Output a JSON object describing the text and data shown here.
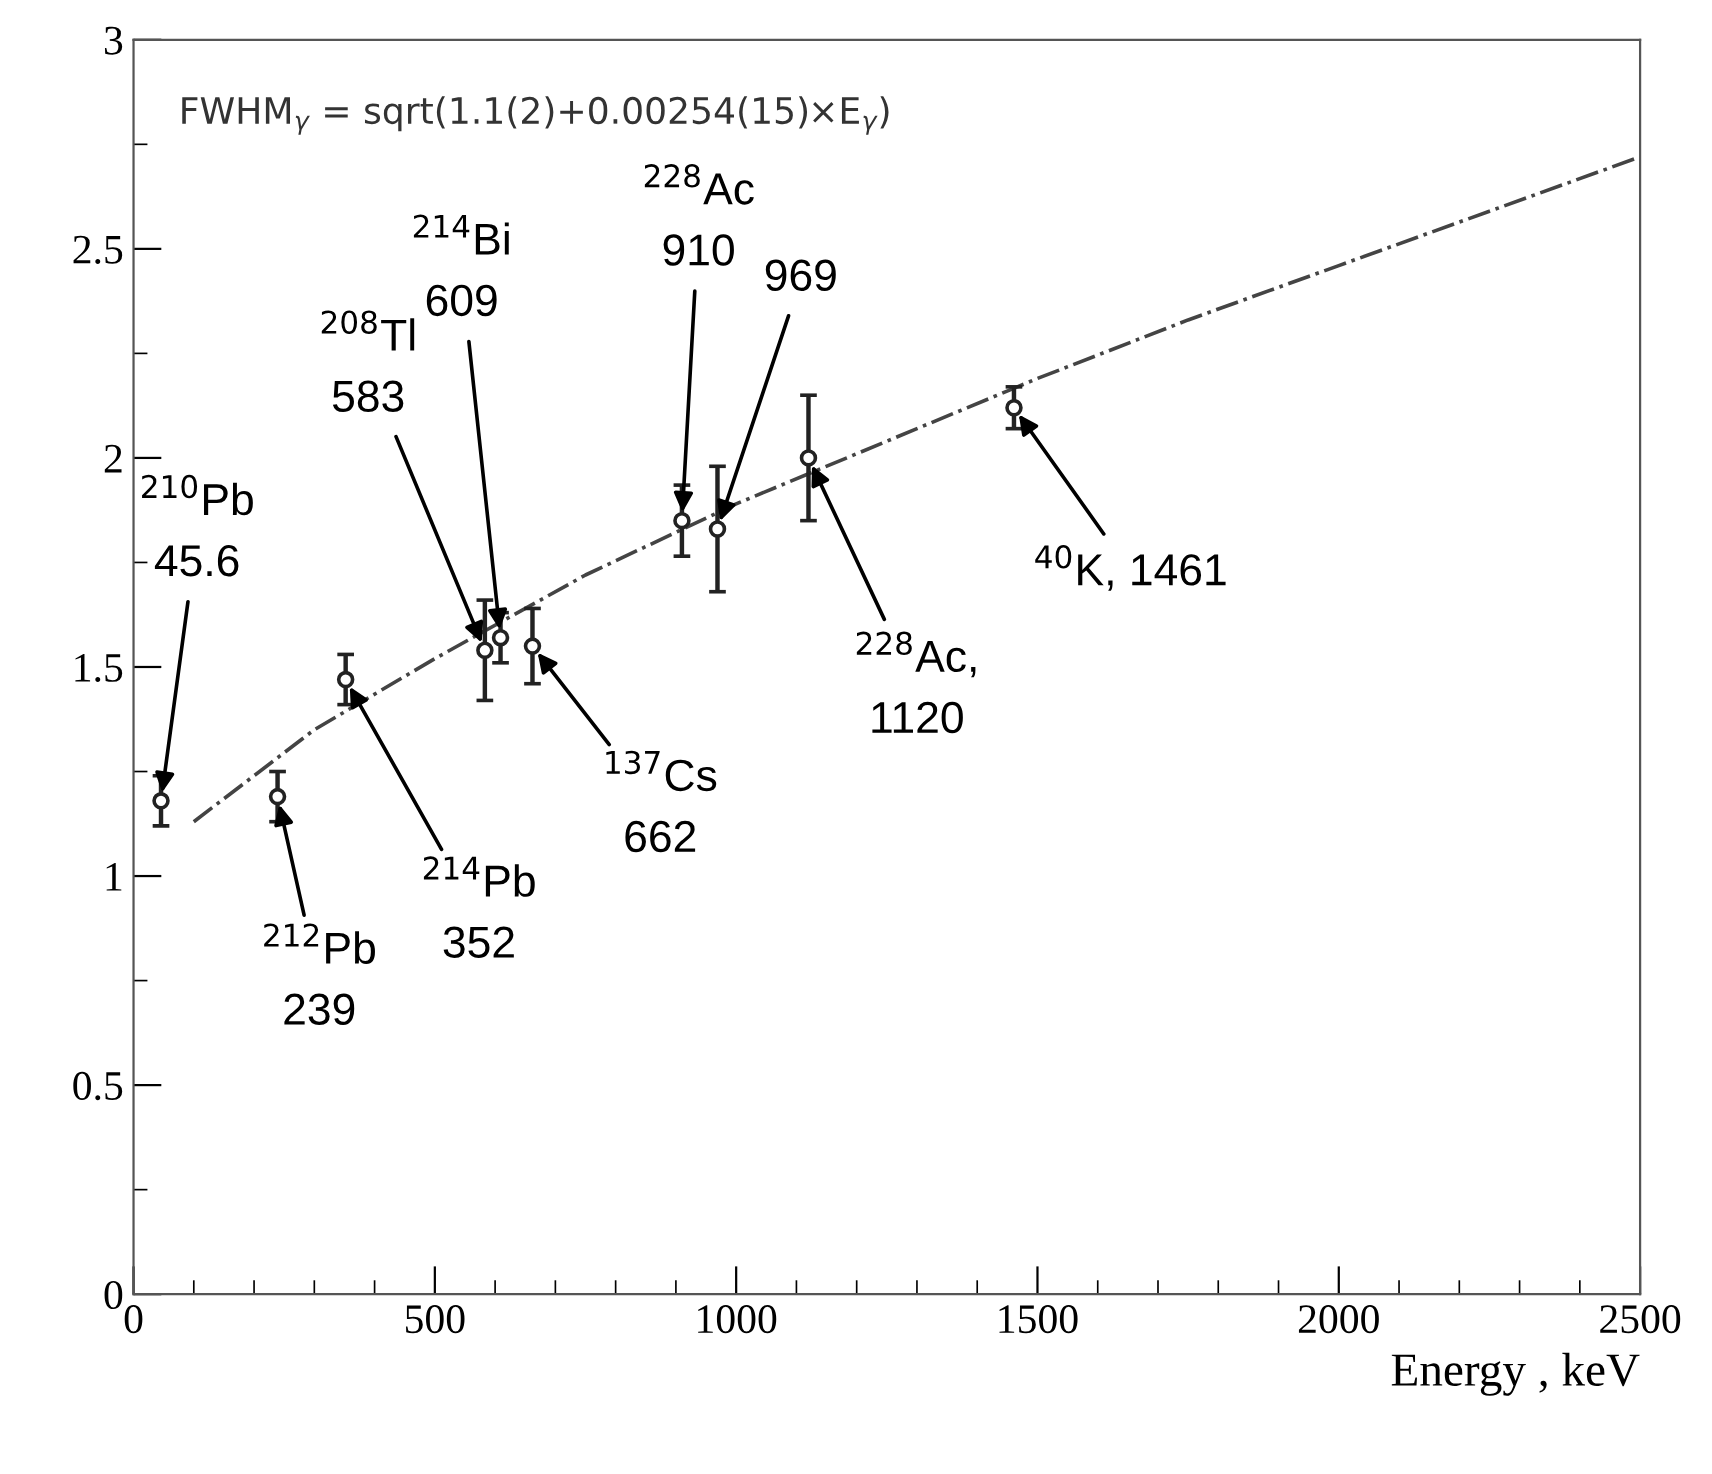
{
  "chart_data": {
    "type": "scatter",
    "xlabel": "Energy , keV",
    "xlim": [
      0,
      2500
    ],
    "xticks": [
      0,
      500,
      1000,
      1500,
      2000,
      2500
    ],
    "ylim": [
      0,
      3
    ],
    "yticks": [
      0,
      0.5,
      1,
      1.5,
      2,
      2.5,
      3
    ],
    "series": [
      {
        "color": "#222222",
        "marker": "circle",
        "x": [
          45.6,
          239,
          352,
          583,
          609,
          662,
          910,
          969,
          1120,
          1461
        ],
        "values": [
          1.18,
          1.19,
          1.47,
          1.54,
          1.57,
          1.55,
          1.85,
          1.83,
          2.0,
          2.12
        ],
        "errors": [
          0.06,
          0.06,
          0.06,
          0.12,
          0.06,
          0.09,
          0.085,
          0.15,
          0.15,
          0.05
        ]
      },
      {
        "type": "line",
        "color": "#444444",
        "line_style": "dashdot",
        "marker": "none",
        "x": [
          100,
          300,
          500,
          750,
          1000,
          1250,
          1500,
          1750,
          2000,
          2250,
          2500
        ],
        "values": [
          1.13,
          1.35,
          1.52,
          1.72,
          1.89,
          2.04,
          2.19,
          2.33,
          2.46,
          2.59,
          2.72
        ]
      }
    ],
    "annotations": [
      "FWHM$_{γ}$ = sqrt(1.1(2)+0.00254(15)×E$_{γ}$)",
      {
        "text": "$^{210}$Pb\n45.6",
        "x": 45.6,
        "y": 1.18
      },
      {
        "text": "$^{212}$Pb\n239",
        "x": 239,
        "y": 1.19
      },
      {
        "text": "$^{214}$Pb\n352",
        "x": 352,
        "y": 1.47
      },
      {
        "text": "$^{208}$Tl\n583",
        "x": 583,
        "y": 1.54
      },
      {
        "text": "$^{214}$Bi\n609",
        "x": 609,
        "y": 1.57
      },
      {
        "text": "$^{137}$Cs\n662",
        "x": 662,
        "y": 1.55
      },
      {
        "text": "$^{228}$Ac\n910",
        "x": 910,
        "y": 1.85
      },
      {
        "text": "969",
        "x": 969,
        "y": 1.83
      },
      {
        "text": "$^{228}$Ac,\n1120",
        "x": 1120,
        "y": 2.0
      },
      {
        "text": "$^{40}$K, 1461",
        "x": 1461,
        "y": 2.12
      }
    ]
  }
}
